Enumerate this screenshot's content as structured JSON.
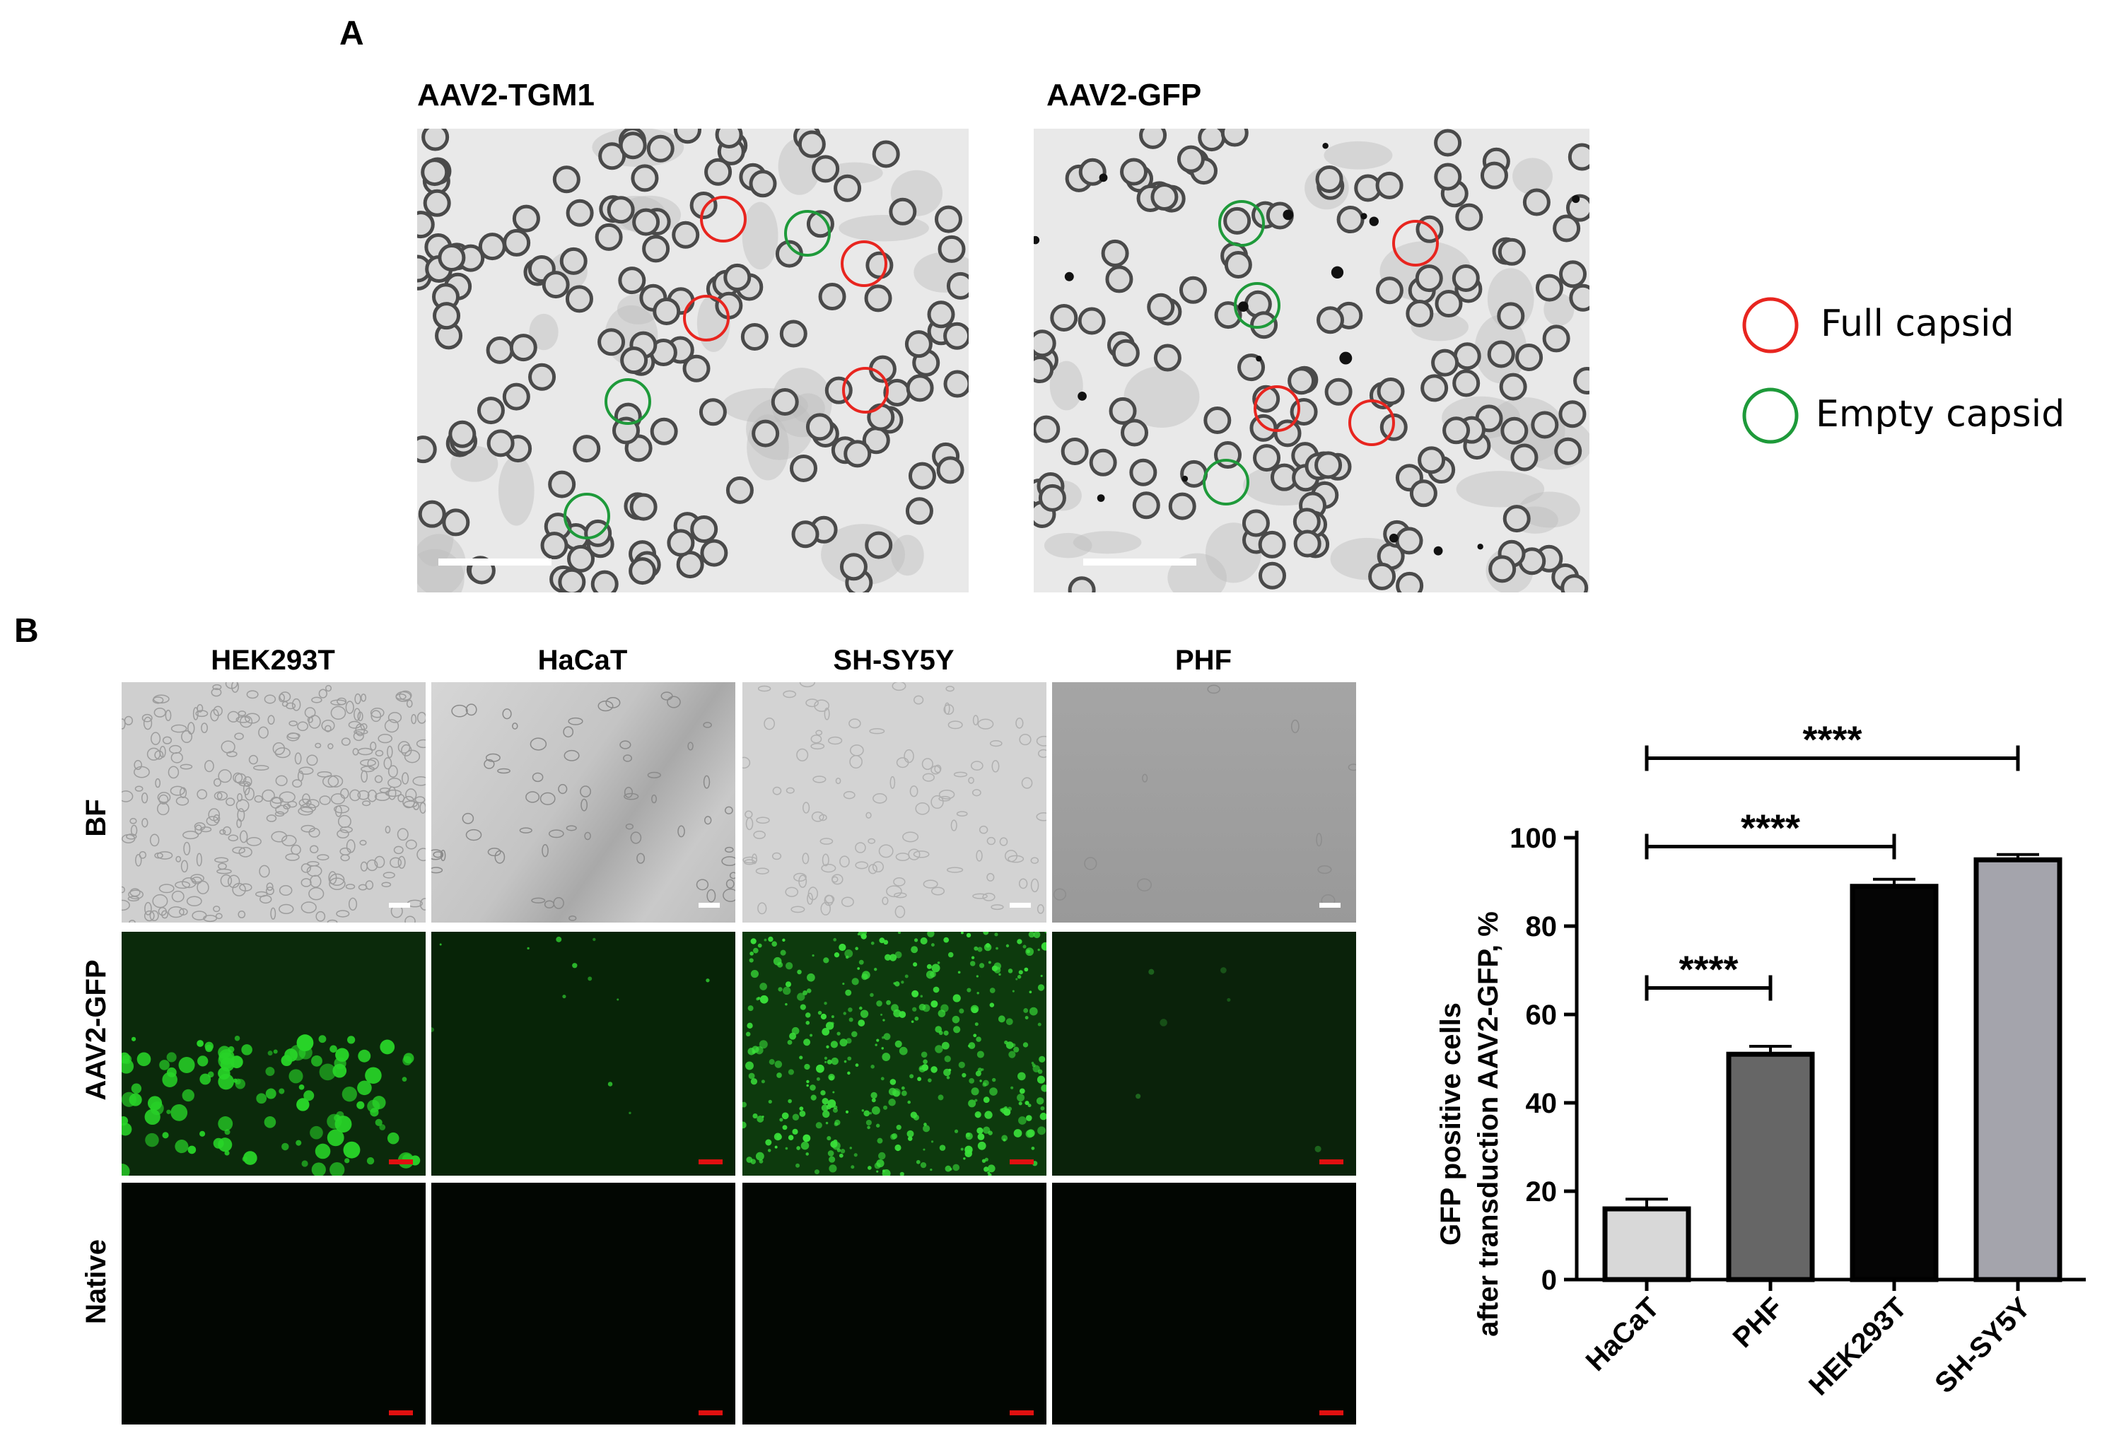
{
  "panel_a": {
    "letter": "A",
    "images": [
      {
        "title": "AAV2-TGM1",
        "full_circles": 4,
        "empty_circles": 3
      },
      {
        "title": "AAV2-GFP",
        "full_circles": 4,
        "empty_circles": 3
      }
    ],
    "legend": [
      {
        "label": "Full capsid",
        "color": "#e8251f"
      },
      {
        "label": "Empty capsid",
        "color": "#1e9a3a"
      }
    ]
  },
  "panel_b": {
    "letter": "B",
    "columns": [
      "HEK293T",
      "HaCaT",
      "SH-SY5Y",
      "PHF"
    ],
    "rows": [
      "BF",
      "AAV2-GFP",
      "Native"
    ],
    "scale_bar_color": "#e01010"
  },
  "chart_data": {
    "type": "bar",
    "categories": [
      "HaCaT",
      "PHF",
      "HEK293T",
      "SH-SY5Y"
    ],
    "values": [
      16,
      51,
      89,
      95
    ],
    "errors": [
      2.2,
      1.8,
      1.6,
      1.2
    ],
    "colors": [
      "#d8d8d8",
      "#666666",
      "#050505",
      "#a4a4ac"
    ],
    "ylabel_line1": "GFP positive cells",
    "ylabel_line2": "after transduction AAV2-GFP, %",
    "ylim": [
      0,
      100
    ],
    "yticks": [
      0,
      20,
      40,
      60,
      80,
      100
    ],
    "significance": [
      {
        "from": 0,
        "to": 1,
        "label": "****"
      },
      {
        "from": 0,
        "to": 2,
        "label": "****"
      },
      {
        "from": 0,
        "to": 3,
        "label": "****"
      }
    ]
  }
}
